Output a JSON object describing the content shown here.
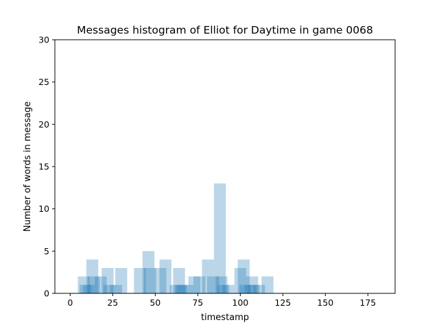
{
  "chart_data": {
    "type": "bar",
    "title": "Messages histogram of Elliot for Daytime in game 0068",
    "xlabel": "timestamp",
    "ylabel": "Number of words in message",
    "xlim": [
      -9,
      191
    ],
    "ylim": [
      0,
      30
    ],
    "x_ticks": [
      0,
      25,
      50,
      75,
      100,
      125,
      150,
      175
    ],
    "y_ticks": [
      0,
      5,
      10,
      15,
      20,
      25,
      30
    ],
    "bar_width": 7,
    "bar_color": "#1f77b4",
    "bar_alpha": 0.3,
    "grid": false,
    "bars": [
      {
        "x": 8,
        "y": 2
      },
      {
        "x": 9,
        "y": 1
      },
      {
        "x": 11,
        "y": 1
      },
      {
        "x": 13,
        "y": 4
      },
      {
        "x": 14,
        "y": 2
      },
      {
        "x": 18,
        "y": 2
      },
      {
        "x": 22,
        "y": 3
      },
      {
        "x": 23,
        "y": 1
      },
      {
        "x": 27,
        "y": 1
      },
      {
        "x": 30,
        "y": 3
      },
      {
        "x": 41,
        "y": 3
      },
      {
        "x": 46,
        "y": 5
      },
      {
        "x": 47,
        "y": 3
      },
      {
        "x": 53,
        "y": 3
      },
      {
        "x": 56,
        "y": 4
      },
      {
        "x": 62,
        "y": 1
      },
      {
        "x": 64,
        "y": 3
      },
      {
        "x": 65,
        "y": 1
      },
      {
        "x": 66,
        "y": 1
      },
      {
        "x": 69,
        "y": 1
      },
      {
        "x": 73,
        "y": 2
      },
      {
        "x": 76,
        "y": 2
      },
      {
        "x": 81,
        "y": 4
      },
      {
        "x": 84,
        "y": 2
      },
      {
        "x": 88,
        "y": 13
      },
      {
        "x": 89,
        "y": 2
      },
      {
        "x": 90,
        "y": 1
      },
      {
        "x": 93,
        "y": 1
      },
      {
        "x": 100,
        "y": 3
      },
      {
        "x": 102,
        "y": 4
      },
      {
        "x": 103,
        "y": 1
      },
      {
        "x": 106,
        "y": 1
      },
      {
        "x": 107,
        "y": 2
      },
      {
        "x": 108,
        "y": 1
      },
      {
        "x": 111,
        "y": 1
      },
      {
        "x": 116,
        "y": 2
      }
    ]
  }
}
